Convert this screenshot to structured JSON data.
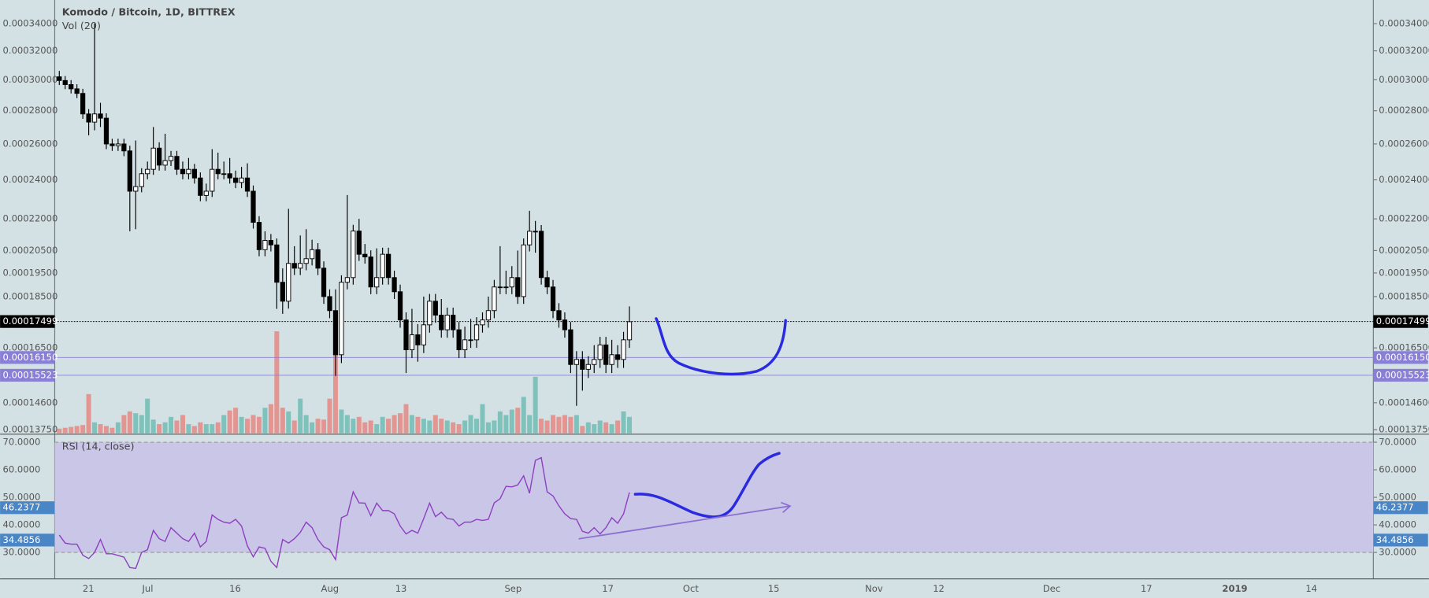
{
  "chart_data": [
    {
      "type": "candlestick",
      "title": "Komodo / Bitcoin, 1D, BITTREX",
      "volume_label": "Vol (20)",
      "log": true,
      "ylim": [
        0.0001364,
        0.0003584
      ],
      "yticks": [
        {
          "value": 0.00034,
          "label": "0.00034000"
        },
        {
          "value": 0.00032,
          "label": "0.00032000"
        },
        {
          "value": 0.0003,
          "label": "0.00030000"
        },
        {
          "value": 0.00028,
          "label": "0.00028000"
        },
        {
          "value": 0.00026,
          "label": "0.00026000"
        },
        {
          "value": 0.00024,
          "label": "0.00024000"
        },
        {
          "value": 0.00022,
          "label": "0.00022000"
        },
        {
          "value": 0.000205,
          "label": "0.00020500"
        },
        {
          "value": 0.000195,
          "label": "0.00019500"
        },
        {
          "value": 0.000185,
          "label": "0.00018500"
        },
        {
          "value": 0.000165,
          "label": "0.00016500"
        },
        {
          "value": 0.000146,
          "label": "0.00014600"
        },
        {
          "value": 0.0001375,
          "label": "0.00013750"
        }
      ],
      "xticks": [
        "21",
        "Jul",
        "16",
        "Aug",
        "13",
        "Sep",
        "17",
        "Oct",
        "15",
        "Nov",
        "12",
        "Dec",
        "17",
        "2019",
        "14"
      ],
      "up_color": "#ffffff",
      "down_color": "#000000",
      "volume_up_color": "#7fc2bb",
      "volume_down_color": "#e39591",
      "price_lines": [
        {
          "value": 0.00017499,
          "label": "0.00017499",
          "color": "#000000",
          "dotted": true
        },
        {
          "value": 0.0001615,
          "label": "0.00016150",
          "color": "#8a7fd6",
          "dotted": false
        },
        {
          "value": 0.00015523,
          "label": "0.00015523",
          "color": "#8a7fd6",
          "dotted": false
        }
      ],
      "candles": [
        [
          0.000302,
          0.000306,
          0.0002965,
          0.0002995
        ],
        [
          0.0002995,
          0.0003025,
          0.0002938,
          0.0002968
        ],
        [
          0.0002968,
          0.0002998,
          0.000291,
          0.000294
        ],
        [
          0.000294,
          0.000297,
          0.000288,
          0.000291
        ],
        [
          0.000291,
          0.000294,
          0.000275,
          0.000278
        ],
        [
          0.000278,
          0.000281,
          0.000265,
          0.000273
        ],
        [
          0.000273,
          0.00034,
          0.000268,
          0.000278
        ],
        [
          0.000278,
          0.000285,
          0.00027,
          0.0002754
        ],
        [
          0.0002754,
          0.0002784,
          0.000257,
          0.00026
        ],
        [
          0.00026,
          0.000263,
          0.000256,
          0.000259
        ],
        [
          0.000259,
          0.000263,
          0.000256,
          0.00026
        ],
        [
          0.00026,
          0.000263,
          0.000253,
          0.000256
        ],
        [
          0.000256,
          0.000259,
          0.000214,
          0.000234
        ],
        [
          0.000234,
          0.000262,
          0.000215,
          0.0002364
        ],
        [
          0.0002364,
          0.0002463,
          0.0002334,
          0.0002433
        ],
        [
          0.0002433,
          0.00025,
          0.0002403,
          0.0002457
        ],
        [
          0.0002457,
          0.00027,
          0.0002427,
          0.0002576
        ],
        [
          0.0002576,
          0.000261,
          0.000245,
          0.000248
        ],
        [
          0.000248,
          0.000266,
          0.000245,
          0.0002505
        ],
        [
          0.0002505,
          0.000256,
          0.0002475,
          0.0002529
        ],
        [
          0.0002529,
          0.000256,
          0.0002427,
          0.0002457
        ],
        [
          0.0002457,
          0.00025,
          0.0002403,
          0.0002433
        ],
        [
          0.0002433,
          0.000252,
          0.0002403,
          0.0002457
        ],
        [
          0.0002457,
          0.0002487,
          0.000238,
          0.000241
        ],
        [
          0.000241,
          0.000244,
          0.0002288,
          0.0002318
        ],
        [
          0.0002318,
          0.000238,
          0.0002288,
          0.000234
        ],
        [
          0.000234,
          0.000257,
          0.000231,
          0.0002457
        ],
        [
          0.0002457,
          0.000255,
          0.0002403,
          0.0002433
        ],
        [
          0.0002433,
          0.00025,
          0.0002403,
          0.0002433
        ],
        [
          0.0002433,
          0.000252,
          0.000238,
          0.000241
        ],
        [
          0.000241,
          0.000245,
          0.0002356,
          0.0002386
        ],
        [
          0.0002386,
          0.000247,
          0.0002356,
          0.000241
        ],
        [
          0.000241,
          0.000249,
          0.000231,
          0.000234
        ],
        [
          0.000234,
          0.000237,
          0.0002153,
          0.0002183
        ],
        [
          0.0002183,
          0.0002213,
          0.0002024,
          0.0002054
        ],
        [
          0.0002054,
          0.000214,
          0.0002024,
          0.0002097
        ],
        [
          0.0002097,
          0.0002127,
          0.0002046,
          0.0002076
        ],
        [
          0.0002076,
          0.0002106,
          0.00018,
          0.000191
        ],
        [
          0.000191,
          0.000197,
          0.000178,
          0.0001831
        ],
        [
          0.0001831,
          0.000225,
          0.0001801,
          0.0001992
        ],
        [
          0.0001992,
          0.000207,
          0.0001941,
          0.0001971
        ],
        [
          0.0001971,
          0.000212,
          0.0001941,
          0.0001992
        ],
        [
          0.0001992,
          0.000215,
          0.0001962,
          0.0002013
        ],
        [
          0.0002013,
          0.00021,
          0.0001983,
          0.0002054
        ],
        [
          0.0002054,
          0.0002084,
          0.0001941,
          0.0001971
        ],
        [
          0.0001971,
          0.0002001,
          0.000182,
          0.000185
        ],
        [
          0.000185,
          0.000188,
          0.0001763,
          0.0001793
        ],
        [
          0.0001793,
          0.000188,
          0.000155,
          0.0001625
        ],
        [
          0.0001625,
          0.000194,
          0.0001595,
          0.000191
        ],
        [
          0.000191,
          0.000232,
          0.000188,
          0.000193
        ],
        [
          0.000193,
          0.0002171,
          0.00019,
          0.0002141
        ],
        [
          0.0002141,
          0.00022,
          0.0002003,
          0.0002033
        ],
        [
          0.0002033,
          0.000208,
          0.0001991,
          0.0002021
        ],
        [
          0.0002021,
          0.0002051,
          0.000186,
          0.000189
        ],
        [
          0.000189,
          0.000206,
          0.000186,
          0.000193
        ],
        [
          0.000193,
          0.0002063,
          0.00019,
          0.0002033
        ],
        [
          0.0002033,
          0.0002063,
          0.00019,
          0.000193
        ],
        [
          0.000193,
          0.000196,
          0.000184,
          0.000187
        ],
        [
          0.000187,
          0.00019,
          0.0001726,
          0.0001756
        ],
        [
          0.0001756,
          0.0001786,
          0.000156,
          0.0001643
        ],
        [
          0.0001643,
          0.00018,
          0.0001613,
          0.0001699
        ],
        [
          0.0001699,
          0.000174,
          0.00016,
          0.0001661
        ],
        [
          0.0001661,
          0.000185,
          0.0001631,
          0.0001737
        ],
        [
          0.0001737,
          0.0001861,
          0.0001707,
          0.0001831
        ],
        [
          0.0001831,
          0.0001861,
          0.0001745,
          0.0001775
        ],
        [
          0.0001775,
          0.000184,
          0.0001688,
          0.0001718
        ],
        [
          0.0001718,
          0.0001805,
          0.0001688,
          0.0001775
        ],
        [
          0.0001775,
          0.0001805,
          0.0001688,
          0.0001718
        ],
        [
          0.0001718,
          0.0001748,
          0.0001613,
          0.0001643
        ],
        [
          0.0001643,
          0.000173,
          0.0001613,
          0.000168
        ],
        [
          0.000168,
          0.000176,
          0.000165,
          0.000168
        ],
        [
          0.000168,
          0.0001767,
          0.000165,
          0.0001737
        ],
        [
          0.0001737,
          0.0001786,
          0.0001707,
          0.0001756
        ],
        [
          0.0001756,
          0.000185,
          0.0001726,
          0.0001793
        ],
        [
          0.0001793,
          0.000192,
          0.0001763,
          0.000189
        ],
        [
          0.000189,
          0.000207,
          0.000186,
          0.000189
        ],
        [
          0.000189,
          0.000196,
          0.000186,
          0.000189
        ],
        [
          0.000189,
          0.000198,
          0.000186,
          0.000193
        ],
        [
          0.000193,
          0.000205,
          0.000182,
          0.000185
        ],
        [
          0.000185,
          0.0002106,
          0.000182,
          0.0002076
        ],
        [
          0.0002076,
          0.000224,
          0.0002046,
          0.000214
        ],
        [
          0.000214,
          0.000219,
          0.000204,
          0.000214
        ],
        [
          0.000214,
          0.000217,
          0.00019,
          0.000193
        ],
        [
          0.000193,
          0.000196,
          0.000186,
          0.000189
        ],
        [
          0.000189,
          0.000192,
          0.0001763,
          0.0001793
        ],
        [
          0.0001793,
          0.0001823,
          0.0001726,
          0.0001756
        ],
        [
          0.0001756,
          0.0001786,
          0.0001688,
          0.0001718
        ],
        [
          0.0001718,
          0.0001748,
          0.000156,
          0.000159
        ],
        [
          0.000159,
          0.0001638,
          0.000145,
          0.0001608
        ],
        [
          0.0001608,
          0.0001638,
          0.00015,
          0.0001573
        ],
        [
          0.0001573,
          0.000162,
          0.0001543,
          0.000159
        ],
        [
          0.000159,
          0.000166,
          0.000156,
          0.0001608
        ],
        [
          0.0001608,
          0.0001691,
          0.0001578,
          0.0001661
        ],
        [
          0.0001661,
          0.0001691,
          0.000156,
          0.000159
        ],
        [
          0.000159,
          0.000168,
          0.000156,
          0.0001625
        ],
        [
          0.0001625,
          0.000166,
          0.0001578,
          0.0001608
        ],
        [
          0.0001608,
          0.000171,
          0.0001578,
          0.000168
        ],
        [
          0.000168,
          0.000181,
          0.000165,
          0.0001749
        ]
      ],
      "volume": [
        5,
        6,
        7,
        8,
        9,
        43,
        12,
        10,
        8,
        6,
        12,
        20,
        24,
        22,
        20,
        38,
        15,
        10,
        12,
        18,
        14,
        20,
        10,
        8,
        12,
        10,
        10,
        12,
        20,
        25,
        28,
        18,
        16,
        20,
        18,
        28,
        32,
        112,
        28,
        24,
        14,
        38,
        20,
        12,
        16,
        15,
        38,
        112,
        26,
        20,
        16,
        18,
        12,
        14,
        10,
        18,
        16,
        20,
        22,
        32,
        20,
        18,
        16,
        14,
        20,
        16,
        14,
        12,
        10,
        14,
        20,
        16,
        32,
        12,
        14,
        24,
        20,
        26,
        28,
        40,
        20,
        62,
        16,
        14,
        20,
        18,
        20,
        18,
        20,
        8,
        12,
        10,
        14,
        12,
        10,
        14,
        24,
        18
      ]
    },
    {
      "type": "line",
      "title": "RSI (14, close)",
      "color": "#8e3ec0",
      "band": [
        30,
        70
      ],
      "band_color": "#c9c6e7",
      "ylim": [
        20.4,
        72.6
      ],
      "yticks": [
        {
          "value": 70,
          "label": "70.0000"
        },
        {
          "value": 60,
          "label": "60.0000"
        },
        {
          "value": 50,
          "label": "50.0000"
        },
        {
          "value": 40,
          "label": "40.0000"
        },
        {
          "value": 30,
          "label": "30.0000"
        }
      ],
      "markers": [
        {
          "value": 46.2377,
          "color": "#4a86c5"
        },
        {
          "value": 34.4856,
          "color": "#4a86c5"
        }
      ],
      "values": [
        36.3,
        33.4,
        33,
        33,
        29,
        27.8,
        30,
        34.7,
        29.5,
        29.5,
        28.9,
        28.3,
        24.5,
        24.2,
        30,
        31,
        38,
        35,
        34,
        39,
        37,
        35,
        34,
        37,
        32,
        34,
        43.6,
        42,
        41,
        40.6,
        42,
        39.6,
        32.4,
        28.4,
        32,
        31.5,
        26.8,
        24.5,
        34.7,
        33.4,
        35,
        37.3,
        41,
        39,
        34.7,
        32,
        31,
        27.4,
        42.6,
        43.6,
        52,
        48,
        47.9,
        43.3,
        47.9,
        45.2,
        45.2,
        44,
        39.6,
        36.7,
        38,
        37,
        42.3,
        47.9,
        43,
        44.6,
        42.3,
        42,
        39.6,
        41,
        41,
        42,
        41.6,
        42,
        48,
        49.5,
        54,
        53.8,
        54.5,
        57.8,
        51.5,
        63.4,
        64.4,
        52,
        50.5,
        46.9,
        44,
        42.3,
        42,
        37.7,
        37,
        39,
        36.7,
        39,
        42.6,
        40.6,
        44,
        51.8
      ]
    }
  ]
}
